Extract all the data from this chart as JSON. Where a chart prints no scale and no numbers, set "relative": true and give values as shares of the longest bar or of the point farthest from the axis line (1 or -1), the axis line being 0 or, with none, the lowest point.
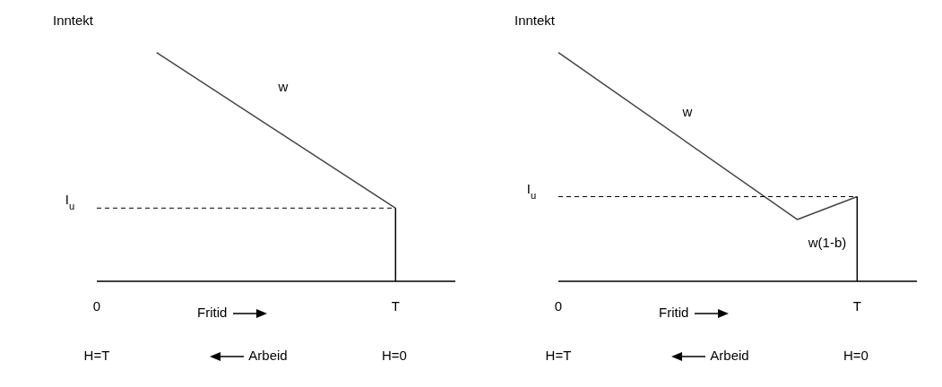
{
  "chart_data": [
    {
      "type": "line",
      "relative": true,
      "ylabel": "Inntekt",
      "xlabel": "Fritid",
      "categories": [
        "0",
        null,
        null,
        null,
        null,
        "T",
        null
      ],
      "tick_labels": "x",
      "marker": "none",
      "line_style": "solid",
      "series": [
        {
          "color": "#444444",
          "values": [
            null,
            1,
            null,
            null,
            null,
            0.32,
            null
          ]
        }
      ],
      "ref_lines": [
        {
          "axis": "y",
          "value": 0.32,
          "label": "I$_{u}$",
          "color": "#000000",
          "line_style": "dashed"
        },
        {
          "axis": "x",
          "value": "T",
          "color": "#000000",
          "line_style": "solid"
        }
      ],
      "annotations": [
        "w",
        "H=T",
        "Arbeid",
        "H=0"
      ]
    },
    {
      "type": "line",
      "relative": true,
      "ylabel": "Inntekt",
      "xlabel": "Fritid",
      "categories": [
        "0",
        null,
        null,
        null,
        null,
        "T",
        null
      ],
      "tick_labels": "x",
      "marker": "none",
      "line_style": "solid",
      "series": [
        {
          "color": "#444444",
          "values": [
            1,
            null,
            null,
            null,
            0.27,
            0.37,
            null
          ]
        }
      ],
      "ref_lines": [
        {
          "axis": "y",
          "value": 0.37,
          "label": "I$_{u}$",
          "color": "#000000",
          "line_style": "dashed"
        },
        {
          "axis": "x",
          "value": "T",
          "color": "#000000",
          "line_style": "solid"
        }
      ],
      "annotations": [
        "w",
        "w(1-b)",
        "H=T",
        "Arbeid",
        "H=0"
      ]
    }
  ]
}
